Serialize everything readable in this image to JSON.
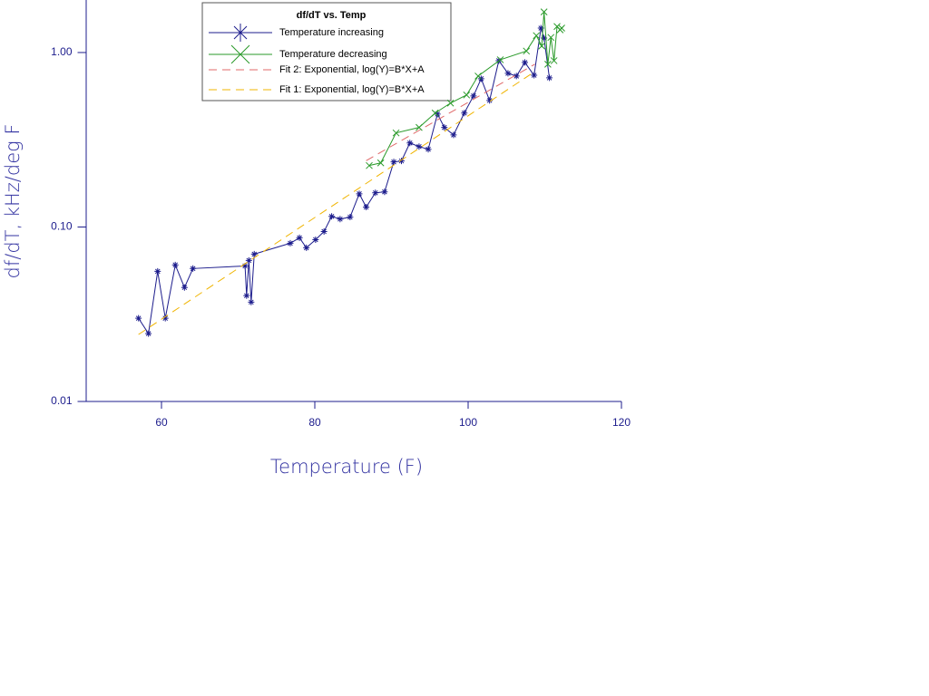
{
  "chart_data": {
    "type": "line",
    "title": "df/dT vs. Temp",
    "x_label": "Temperature (F)",
    "y_label": "df/dT, kHz/deg F",
    "xlim": [
      50,
      120
    ],
    "xticks": [
      60,
      80,
      100,
      120
    ],
    "ylim": [
      0.01,
      2
    ],
    "yticks": [
      {
        "value": 0.01,
        "label": "0.01"
      },
      {
        "value": 0.1,
        "label": "0.10"
      },
      {
        "value": 1,
        "label": "1.00"
      }
    ],
    "log_y": true,
    "series": [
      {
        "name": "Temperature increasing",
        "color": "#1c1c8c",
        "marker": "star",
        "line_style": "solid",
        "x": [
          57.0,
          58.3,
          59.5,
          60.5,
          61.8,
          63.0,
          64.1,
          70.9,
          71.1,
          71.4,
          71.7,
          72.1,
          76.8,
          78.0,
          78.9,
          80.1,
          81.2,
          82.2,
          83.3,
          84.6,
          85.8,
          86.7,
          87.9,
          89.1,
          90.3,
          91.3,
          92.4,
          93.6,
          94.8,
          96.0,
          96.9,
          98.1,
          99.5,
          100.7,
          101.7,
          102.8,
          104.0,
          105.2,
          106.3,
          107.4,
          108.6,
          109.5,
          109.9,
          110.6
        ],
        "values": [
          0.03,
          0.0245,
          0.0557,
          0.03,
          0.0606,
          0.045,
          0.0578,
          0.0598,
          0.0404,
          0.0643,
          0.0371,
          0.0699,
          0.0807,
          0.0867,
          0.076,
          0.0846,
          0.0942,
          0.115,
          0.111,
          0.114,
          0.155,
          0.13,
          0.157,
          0.159,
          0.236,
          0.239,
          0.303,
          0.289,
          0.279,
          0.444,
          0.372,
          0.337,
          0.45,
          0.564,
          0.708,
          0.531,
          0.898,
          0.76,
          0.733,
          0.877,
          0.741,
          1.38,
          1.21,
          0.716
        ]
      },
      {
        "name": "Temperature decreasing",
        "color": "#2a9a2a",
        "marker": "x",
        "line_style": "solid",
        "x": [
          87.1,
          88.6,
          90.6,
          93.6,
          95.7,
          97.7,
          99.8,
          101.3,
          104.2,
          107.6,
          108.9,
          109.6,
          109.9,
          110.4,
          110.8,
          111.2,
          111.6,
          112.0,
          112.2
        ],
        "values": [
          0.225,
          0.233,
          0.346,
          0.372,
          0.45,
          0.513,
          0.571,
          0.733,
          0.909,
          1.02,
          1.25,
          1.09,
          1.71,
          0.857,
          1.22,
          0.898,
          1.41,
          1.35,
          1.38
        ]
      },
      {
        "name": "Fit 2:  Exponential, log(Y)=B*X+A",
        "color": "#e06868",
        "marker": "none",
        "line_style": "dashed",
        "x": [
          86.7,
          108.7
        ],
        "values": [
          0.24,
          0.857
        ]
      },
      {
        "name": "Fit 1:  Exponential, log(Y)=B*X+A",
        "color": "#f0b400",
        "marker": "none",
        "line_style": "dashed",
        "x": [
          57.0,
          108.7
        ],
        "values": [
          0.0242,
          0.778
        ]
      }
    ]
  }
}
